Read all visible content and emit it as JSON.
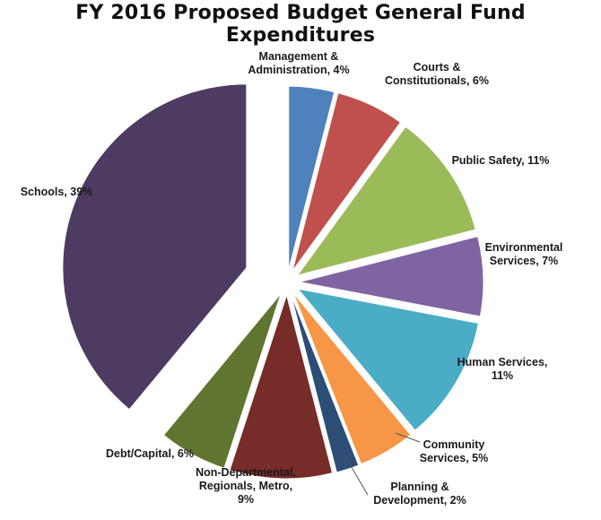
{
  "chart_data": {
    "type": "pie",
    "title": "FY 2016 Proposed Budget General Fund Expenditures",
    "exploded": true,
    "slices": [
      {
        "name": "Management & Administration",
        "label_lines": [
          "Management &",
          "Administration, 4%"
        ],
        "value": 4,
        "color": "#4f81bd"
      },
      {
        "name": "Courts & Constitutionals",
        "label_lines": [
          "Courts &",
          "Constitutionals, 6%"
        ],
        "value": 6,
        "color": "#c0504d"
      },
      {
        "name": "Public Safety",
        "label_lines": [
          "Public Safety, 11%"
        ],
        "value": 11,
        "color": "#9bbb59"
      },
      {
        "name": "Environmental Services",
        "label_lines": [
          "Environmental",
          "Services, 7%"
        ],
        "value": 7,
        "color": "#8064a2"
      },
      {
        "name": "Human Services",
        "label_lines": [
          "Human Services,",
          "11%"
        ],
        "value": 11,
        "color": "#4bacc6"
      },
      {
        "name": "Community Services",
        "label_lines": [
          "Community",
          "Services, 5%"
        ],
        "value": 5,
        "color": "#f79646"
      },
      {
        "name": "Planning & Development",
        "label_lines": [
          "Planning &",
          "Development, 2%"
        ],
        "value": 2,
        "color": "#2c4d75"
      },
      {
        "name": "Non-Departmental, Regionals, Metro",
        "label_lines": [
          "Non-Departmental,",
          "Regionals, Metro,",
          "9%"
        ],
        "value": 9,
        "color": "#772c2a"
      },
      {
        "name": "Debt/Capital",
        "label_lines": [
          "Debt/Capital, 6%"
        ],
        "value": 6,
        "color": "#5f7530"
      },
      {
        "name": "Schools",
        "label_lines": [
          "Schools, 39%"
        ],
        "value": 39,
        "color": "#4d3b62"
      }
    ]
  }
}
